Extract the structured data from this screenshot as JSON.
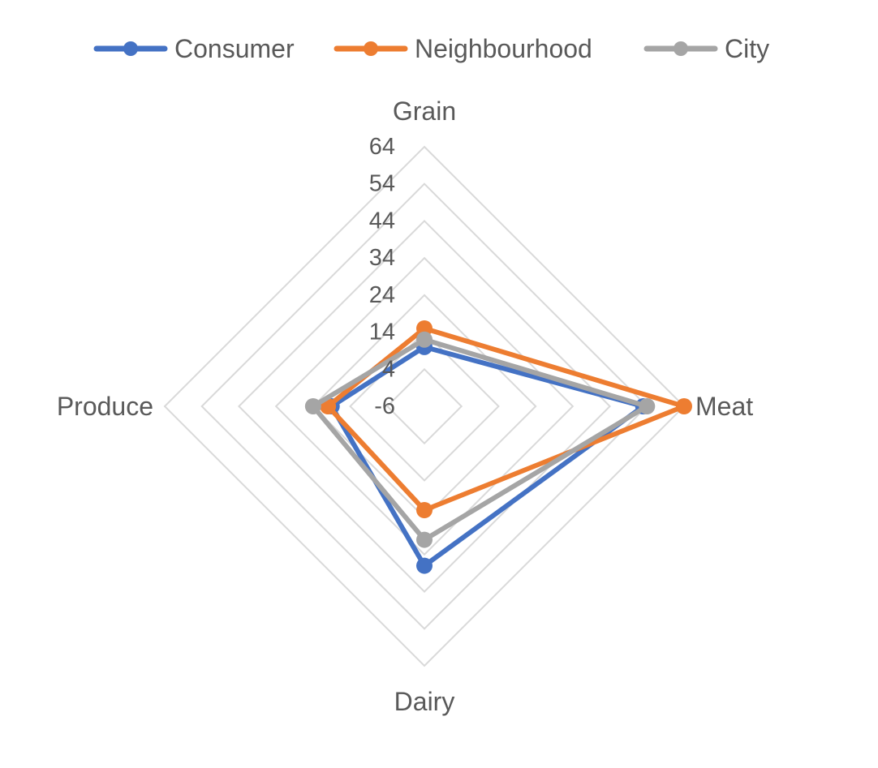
{
  "chart_data": {
    "type": "radar",
    "categories": [
      "Grain",
      "Meat",
      "Dairy",
      "Produce"
    ],
    "radial_ticks": [
      "-6",
      "4",
      "14",
      "24",
      "34",
      "44",
      "54",
      "64"
    ],
    "r_range": [
      -6,
      64
    ],
    "grid": true,
    "legend_position": "top",
    "series": [
      {
        "name": "Consumer",
        "color": "#4472C4",
        "values": [
          10,
          53,
          37,
          19
        ]
      },
      {
        "name": "Neighbourhood",
        "color": "#ED7D31",
        "values": [
          15,
          64,
          22,
          20
        ]
      },
      {
        "name": "City",
        "color": "#A5A5A5",
        "values": [
          12,
          54,
          30,
          24
        ]
      }
    ]
  }
}
